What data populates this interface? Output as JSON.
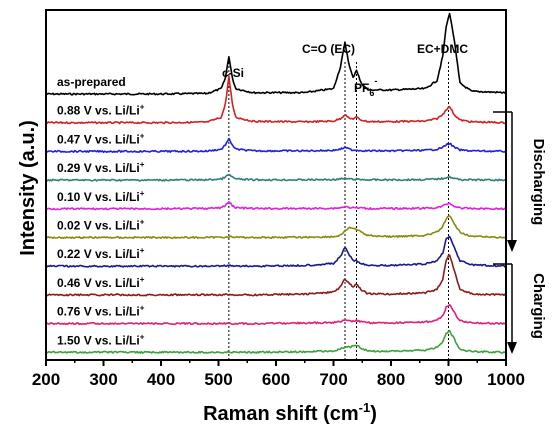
{
  "chart_data": {
    "type": "line",
    "xlabel": "Raman shift (cm",
    "xlabel_sup": "-1",
    "xlabel_close": ")",
    "ylabel": "Intensity (a.u.)",
    "xlim": [
      200,
      1000
    ],
    "xticks": [
      "200",
      "300",
      "400",
      "500",
      "600",
      "700",
      "800",
      "900",
      "1000"
    ],
    "x": [
      200,
      400,
      480,
      505,
      512,
      518,
      524,
      530,
      560,
      650,
      700,
      712,
      720,
      728,
      734,
      740,
      748,
      760,
      800,
      860,
      880,
      890,
      896,
      902,
      910,
      920,
      940,
      1000
    ],
    "series": [
      {
        "label": "as-prepared",
        "sup": "",
        "color": "#000000",
        "values": [
          0,
          0,
          0.2,
          2,
          6,
          14,
          6,
          2,
          0.5,
          0.5,
          2,
          10,
          19,
          10,
          6,
          9,
          4,
          1.5,
          1.5,
          2,
          5,
          14,
          25,
          30,
          20,
          4,
          1,
          0.5
        ]
      },
      {
        "label": "0.88 V vs. Li/Li",
        "sup": "+",
        "color": "#d42020",
        "values": [
          0,
          0,
          0.2,
          2,
          7,
          17,
          7,
          2,
          0.5,
          0.3,
          0.6,
          1.5,
          3,
          1.5,
          1.5,
          2,
          1,
          0.4,
          0.4,
          0.6,
          1.5,
          3,
          5,
          6,
          3,
          1,
          0.3,
          0
        ]
      },
      {
        "label": "0.47 V vs. Li/Li",
        "sup": "+",
        "color": "#2020dd",
        "values": [
          0,
          0,
          0.1,
          0.8,
          2.5,
          4.5,
          2.5,
          0.8,
          0.2,
          0.2,
          0.4,
          0.8,
          1.5,
          0.8,
          0.5,
          0.5,
          0.3,
          0.2,
          0.2,
          0.4,
          0.8,
          1.5,
          2.5,
          3,
          1.5,
          0.5,
          0.2,
          0
        ]
      },
      {
        "label": "0.29 V vs. Li/Li",
        "sup": "+",
        "color": "#2e8080",
        "values": [
          0,
          0,
          0.1,
          0.4,
          1.2,
          2,
          1.2,
          0.4,
          0.1,
          0.1,
          0.2,
          0.4,
          0.6,
          0.4,
          0.3,
          0.3,
          0.2,
          0.1,
          0.1,
          0.2,
          0.4,
          0.6,
          1,
          1.2,
          0.6,
          0.2,
          0.1,
          0
        ]
      },
      {
        "label": "0.10 V vs. Li/Li",
        "sup": "+",
        "color": "#e020e0",
        "values": [
          0,
          0,
          0.1,
          0.4,
          1.3,
          2.5,
          1.3,
          0.4,
          0.1,
          0.1,
          0.2,
          0.4,
          0.8,
          0.5,
          0.4,
          0.4,
          0.3,
          0.1,
          0.1,
          0.2,
          0.4,
          1,
          1.8,
          2,
          1,
          0.3,
          0.1,
          0
        ]
      },
      {
        "label": "0.02 V vs. Li/Li",
        "sup": "+",
        "color": "#8a8a10",
        "values": [
          0,
          0,
          0,
          0.1,
          0.2,
          0.3,
          0.2,
          0.1,
          0,
          0.1,
          0.3,
          0.8,
          2.5,
          3.5,
          3.5,
          3,
          2,
          0.8,
          0.3,
          0.8,
          2,
          4,
          7,
          8,
          5,
          2,
          0.4,
          0
        ]
      },
      {
        "label": "0.22 V vs. Li/Li",
        "sup": "+",
        "color": "#1a1a90",
        "values": [
          0,
          0,
          0,
          0.1,
          0.2,
          0.3,
          0.2,
          0.1,
          0,
          0.3,
          1,
          3.5,
          7,
          4,
          2,
          2,
          1,
          0.3,
          0.3,
          0.8,
          2,
          5,
          10,
          11,
          7,
          2,
          0.5,
          0
        ]
      },
      {
        "label": "0.46 V vs. Li/Li",
        "sup": "+",
        "color": "#8b1a1a",
        "values": [
          0,
          0,
          0,
          0,
          0.1,
          0.2,
          0.1,
          0,
          0,
          0.3,
          1,
          3,
          6,
          4,
          3,
          4,
          2,
          0.4,
          0.3,
          0.8,
          2,
          6,
          13,
          15,
          9,
          2,
          0.4,
          0
        ]
      },
      {
        "label": "0.76 V vs. Li/Li",
        "sup": "+",
        "color": "#e0207a",
        "values": [
          0,
          0,
          0,
          0,
          0,
          0.1,
          0,
          0,
          0,
          0.2,
          0.4,
          0.8,
          1.3,
          1,
          1,
          1.2,
          0.8,
          0.3,
          0.3,
          0.6,
          1.2,
          3,
          6,
          7,
          4,
          1,
          0.3,
          0
        ]
      },
      {
        "label": "1.50 V vs. Li/Li",
        "sup": "+",
        "color": "#3ea03e",
        "values": [
          0,
          0,
          0,
          0,
          0,
          0.1,
          0,
          0,
          0,
          0.2,
          0.5,
          1.2,
          2,
          2,
          2.2,
          2.5,
          1.6,
          0.5,
          0.3,
          0.8,
          1.8,
          4,
          7,
          8,
          5,
          1,
          0.3,
          0
        ]
      }
    ],
    "annotations": [
      "c-Si",
      "C=O (EC)",
      "PF",
      "6",
      "-",
      "EC+DMC"
    ],
    "side_labels": [
      "Discharging",
      "Charging"
    ],
    "reference_lines_x": [
      518,
      720,
      740,
      900
    ],
    "legend": "none"
  }
}
